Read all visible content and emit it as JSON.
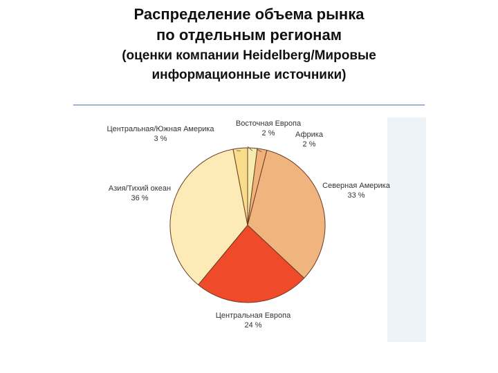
{
  "title": {
    "line1": "Распределение объема рынка",
    "line2": "по отдельным регионам",
    "line3": "(оценки компании Heidelberg/Мировые",
    "line4": "информационные источники)"
  },
  "chart_data": {
    "type": "pie",
    "slices": [
      {
        "label": "Восточная Европа",
        "pct_label": "2 %",
        "value": 2,
        "color": "#f6ecae"
      },
      {
        "label": "Африка",
        "pct_label": "2 %",
        "value": 2,
        "color": "#efb27a"
      },
      {
        "label": "Северная Америка",
        "pct_label": "33 %",
        "value": 33,
        "color": "#f0b47f"
      },
      {
        "label": "Центральная Европа",
        "pct_label": "24 %",
        "value": 24,
        "color": "#ef4a2a"
      },
      {
        "label": "Азия/Тихий океан",
        "pct_label": "36 %",
        "value": 36,
        "color": "#fcebb6"
      },
      {
        "label": "Центральная/Южная Америка",
        "pct_label": "3 %",
        "value": 3,
        "color": "#f7dd8c"
      }
    ],
    "legend": "none"
  }
}
